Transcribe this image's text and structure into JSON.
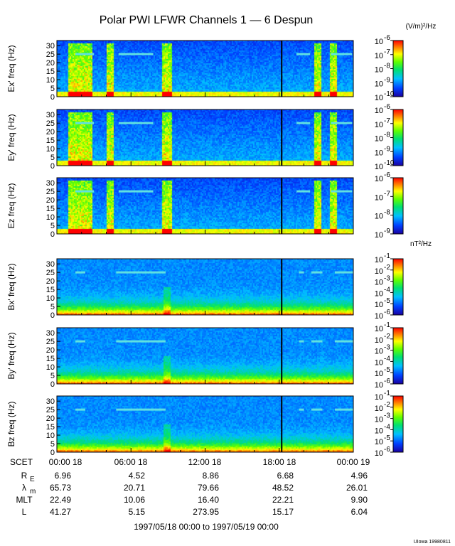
{
  "chart_data": {
    "type": "heatmap",
    "title": "Polar PWI LFWR Channels 1 — 6 Despun",
    "units": {
      "electric": "(V/m)²/Hz",
      "magnetic": "nT²/Hz"
    },
    "x_ticks": [
      "00:00 18",
      "06:00 18",
      "12:00 18",
      "18:00 18",
      "00:00 19"
    ],
    "y_ticks": [
      "0",
      "5",
      "10",
      "15",
      "20",
      "25",
      "30"
    ],
    "ylim": [
      0,
      33
    ],
    "xlim_hours": [
      0,
      24
    ],
    "panels": [
      {
        "id": "ex",
        "ylabel": "Ex' freq (Hz)",
        "colorbar_exponents": [
          "-6",
          "-7",
          "-8",
          "-9",
          "-10"
        ],
        "colorbar_labels": [
          "10",
          "10",
          "10",
          "10",
          "10"
        ]
      },
      {
        "id": "ey",
        "ylabel": "Ey' freq (Hz)",
        "colorbar_exponents": [
          "-6",
          "-7",
          "-8",
          "-9",
          "-10"
        ],
        "colorbar_labels": [
          "10",
          "10",
          "10",
          "10",
          "10"
        ]
      },
      {
        "id": "ez",
        "ylabel": "Ez freq (Hz)",
        "colorbar_exponents": [
          "-6",
          "-7",
          "-8",
          "-9"
        ],
        "colorbar_labels": [
          "10",
          "10",
          "10",
          "10"
        ]
      },
      {
        "id": "bx",
        "ylabel": "Bx' freq (Hz)",
        "colorbar_exponents": [
          "-1",
          "-2",
          "-3",
          "-4",
          "-5",
          "-6"
        ],
        "colorbar_labels": [
          "10",
          "10",
          "10",
          "10",
          "10",
          "10"
        ]
      },
      {
        "id": "by",
        "ylabel": "By' freq (Hz)",
        "colorbar_exponents": [
          "-1",
          "-2",
          "-3",
          "-4",
          "-5",
          "-6"
        ],
        "colorbar_labels": [
          "10",
          "10",
          "10",
          "10",
          "10",
          "10"
        ]
      },
      {
        "id": "bz",
        "ylabel": "Bz freq (Hz)",
        "colorbar_exponents": [
          "-1",
          "-2",
          "-3",
          "-4",
          "-5",
          "-6"
        ],
        "colorbar_labels": [
          "10",
          "10",
          "10",
          "10",
          "10",
          "10"
        ]
      }
    ],
    "ephemeris": {
      "scet_label": "SCET",
      "rows": [
        {
          "label": "R",
          "sub": "E",
          "values": [
            "6.96",
            "4.52",
            "8.86",
            "6.68",
            "4.96"
          ]
        },
        {
          "label": "λ",
          "sub": "m",
          "values": [
            "65.73",
            "20.71",
            "79.66",
            "48.52",
            "26.01"
          ]
        },
        {
          "label": "MLT",
          "sub": "",
          "values": [
            "22.49",
            "10.06",
            "16.40",
            "22.21",
            "9.90"
          ]
        },
        {
          "label": "L",
          "sub": "",
          "values": [
            "41.27",
            "5.15",
            "273.95",
            "15.17",
            "6.04"
          ]
        }
      ]
    },
    "date_range": "1997/05/18 00:00 to 1997/05/19 00:00",
    "credit": "UIowa 19980811"
  }
}
